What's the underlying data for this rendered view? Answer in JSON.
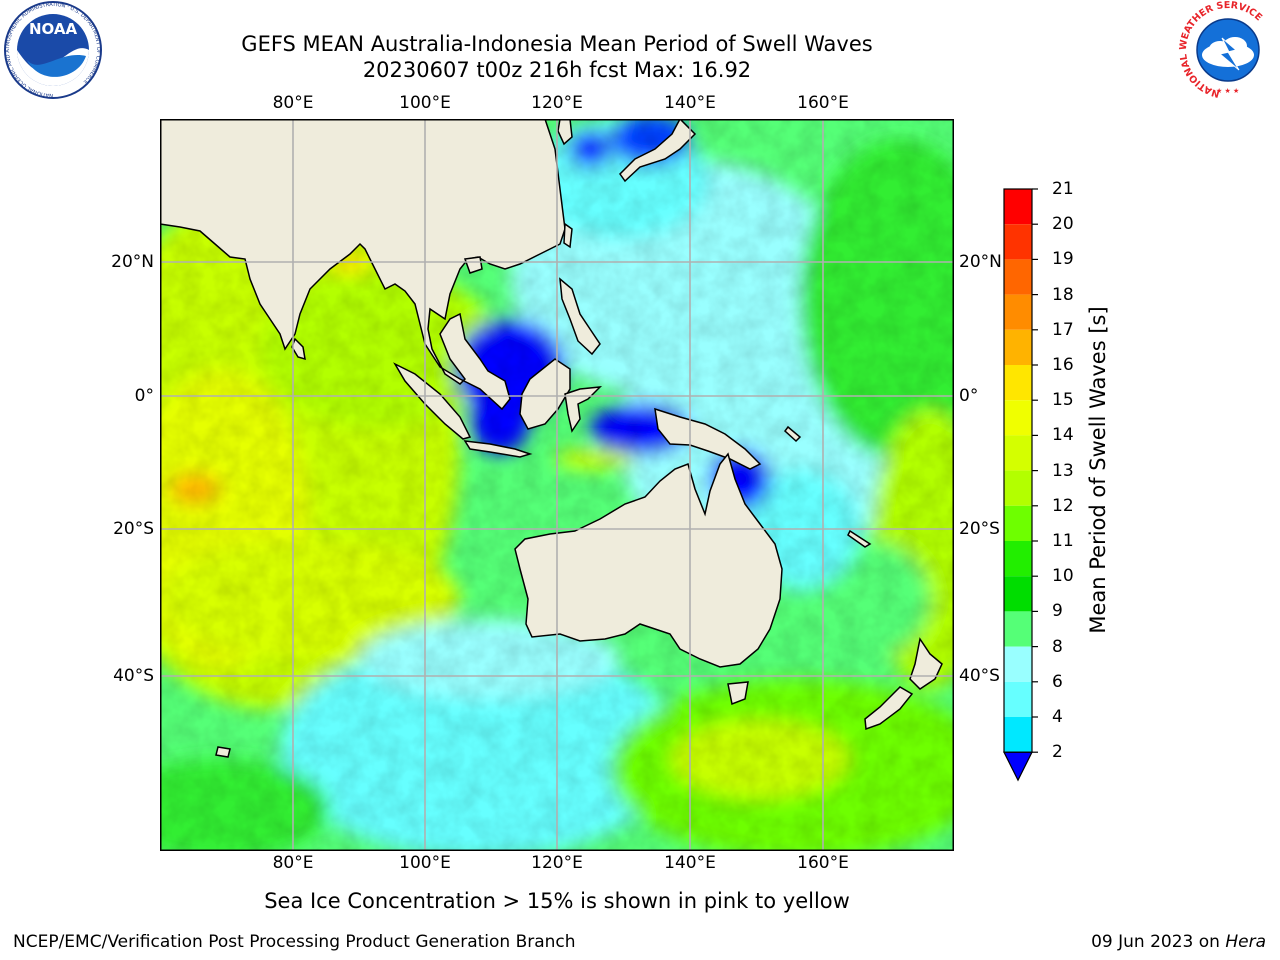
{
  "header": {
    "title_line1": "GEFS MEAN Australia-Indonesia Mean Period of Swell Waves",
    "title_line2": "20230607 t00z 216h fcst   Max: 16.92"
  },
  "axes": {
    "lon_labels": [
      "80°E",
      "100°E",
      "120°E",
      "140°E",
      "160°E"
    ],
    "lat_labels_left": [
      "20°N",
      "0°",
      "20°S",
      "40°S"
    ],
    "lat_labels_right": [
      "20°N",
      "0°",
      "20°S",
      "40°S"
    ]
  },
  "colorbar": {
    "title": "Mean Period of Swell Waves [s]",
    "ticks": [
      "21",
      "20",
      "19",
      "18",
      "17",
      "16",
      "15",
      "14",
      "13",
      "12",
      "11",
      "10",
      "9",
      "8",
      "6",
      "4",
      "2"
    ],
    "colors": [
      "#ff0000",
      "#ff3300",
      "#ff6600",
      "#ff8c00",
      "#ffb300",
      "#ffe600",
      "#f0ff00",
      "#d4ff00",
      "#b3ff00",
      "#6eff00",
      "#22ee00",
      "#00dd00",
      "#55ff77",
      "#99ffff",
      "#66ffff",
      "#00e8ff",
      "#0080ff",
      "#0000ff"
    ]
  },
  "logos": {
    "noaa_text": "NOAA",
    "noaa_ring": "NATIONAL OCEANIC AND ATMOSPHERIC ADMINISTRATION · U.S. DEPARTMENT OF COMMERCE",
    "nws_ring": "NATIONAL WEATHER SERVICE"
  },
  "note": "Sea Ice Concentration > 15% is shown in pink to yellow",
  "footer": {
    "left": "NCEP/EMC/Verification Post Processing Product Generation Branch",
    "right_date": "09 Jun 2023 on ",
    "right_host": "Hera"
  }
}
